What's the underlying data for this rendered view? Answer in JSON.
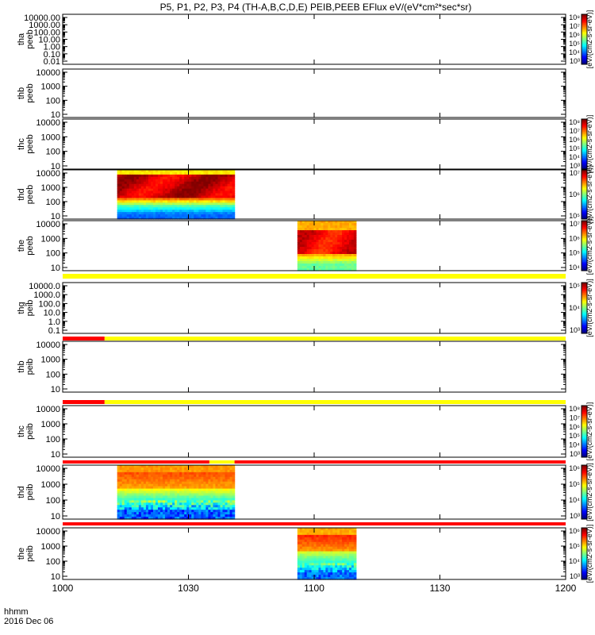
{
  "title": "P5, P1, P2, P3, P4 (TH-A,B,C,D,E) PEIB,PEEB EFlux eV/(eV*cm²*sec*sr)",
  "time_axis": {
    "label_line1": "hhmm",
    "label_line2": "2016 Dec 06",
    "ticks": [
      "1000",
      "1030",
      "1100",
      "1130",
      "1200"
    ]
  },
  "colorbar_unit_label": "[eV/(cm2-s-sr-eV)]",
  "colors": {
    "status_yellow": "#ffff00",
    "status_red": "#ff0000",
    "frame": "#000000"
  },
  "chart_data": {
    "type": "heatmap",
    "x_range": [
      "10:00",
      "12:00"
    ],
    "panels": [
      {
        "name": "tha peeb",
        "label1": "tha",
        "label2": "peeb",
        "yticks": [
          "10000.00",
          "1000.00",
          "100.00",
          "10.00",
          "1.00",
          "0.10",
          "0.01"
        ],
        "colorbar": true,
        "cb_ticks": [
          "10⁸",
          "10⁷",
          "10⁶",
          "10⁵",
          "10⁴",
          "10³"
        ],
        "data_spans": []
      },
      {
        "name": "thb peeb",
        "label1": "thb",
        "label2": "peeb",
        "yticks": [
          "10000",
          "1000",
          "100",
          "10"
        ],
        "colorbar": false,
        "data_spans": []
      },
      {
        "name": "thc peeb",
        "label1": "thc",
        "label2": "peeb",
        "yticks": [
          "10000",
          "1000",
          "100",
          "10"
        ],
        "colorbar": true,
        "cb_ticks": [
          "10⁸",
          "10⁷",
          "10⁶",
          "10⁵",
          "10⁴",
          "10³"
        ],
        "data_spans": []
      },
      {
        "name": "thd peeb",
        "label1": "thd",
        "label2": "peeb",
        "yticks": [
          "10000",
          "1000",
          "100",
          "10"
        ],
        "colorbar": true,
        "cb_ticks": [
          "10⁷",
          "10⁶",
          "10⁵"
        ],
        "data_spans": [
          {
            "start": "10:13",
            "end": "10:41",
            "profile": "thd_peeb"
          }
        ]
      },
      {
        "name": "the peeb",
        "label1": "the",
        "label2": "peeb",
        "yticks": [
          "10000",
          "1000",
          "100",
          "10"
        ],
        "colorbar": true,
        "cb_ticks": [
          "10⁷",
          "10⁶",
          "10⁵",
          "10⁴"
        ],
        "data_spans": [
          {
            "start": "10:56",
            "end": "11:10",
            "profile": "the_peeb"
          }
        ]
      },
      {
        "name": "thg peib",
        "label1": "thg",
        "label2": "peib",
        "yticks": [
          "10000.0",
          "1000.0",
          "100.0",
          "10.0",
          "1.0",
          "0.1"
        ],
        "colorbar": true,
        "cb_ticks": [
          "10⁵",
          "10⁴",
          "10³"
        ],
        "data_spans": []
      },
      {
        "name": "thb peib",
        "label1": "thb",
        "label2": "peib",
        "yticks": [
          "10000",
          "1000",
          "100",
          "10"
        ],
        "colorbar": false,
        "data_spans": []
      },
      {
        "name": "thc peib",
        "label1": "thc",
        "label2": "peib",
        "yticks": [
          "10000",
          "1000",
          "100",
          "10"
        ],
        "colorbar": true,
        "cb_ticks": [
          "10⁸",
          "10⁷",
          "10⁶",
          "10⁵",
          "10⁴",
          "10³"
        ],
        "data_spans": []
      },
      {
        "name": "thd peib",
        "label1": "thd",
        "label2": "peib",
        "yticks": [
          "10000",
          "1000",
          "100",
          "10"
        ],
        "colorbar": true,
        "cb_ticks": [
          "10⁶",
          "10⁵",
          "10⁴",
          "10³"
        ],
        "data_spans": [
          {
            "start": "10:13",
            "end": "10:41",
            "profile": "thd_peib"
          }
        ]
      },
      {
        "name": "the peib",
        "label1": "the",
        "label2": "peib",
        "yticks": [
          "10000",
          "1000",
          "100",
          "10"
        ],
        "colorbar": true,
        "cb_ticks": [
          "10⁶",
          "10⁵",
          "10⁴",
          "10³"
        ],
        "data_spans": [
          {
            "start": "10:56",
            "end": "11:10",
            "profile": "the_peib"
          }
        ]
      }
    ],
    "status_bars": [
      {
        "after_panel": 4,
        "segments": [
          {
            "start": "10:00",
            "end": "12:00",
            "color": "yellow"
          }
        ]
      },
      {
        "after_panel": 5,
        "segments": [
          {
            "start": "10:00",
            "end": "10:10",
            "color": "red"
          },
          {
            "start": "10:10",
            "end": "12:00",
            "color": "yellow"
          }
        ]
      },
      {
        "after_panel": 6,
        "segments": [
          {
            "start": "10:00",
            "end": "10:10",
            "color": "red"
          },
          {
            "start": "10:10",
            "end": "12:00",
            "color": "yellow"
          }
        ]
      },
      {
        "after_panel": 7,
        "segments": [
          {
            "start": "10:00",
            "end": "10:35",
            "color": "red"
          },
          {
            "start": "10:35",
            "end": "10:41",
            "color": "yellow"
          },
          {
            "start": "10:41",
            "end": "12:00",
            "color": "red"
          }
        ]
      },
      {
        "after_panel": 8,
        "segments": [
          {
            "start": "10:00",
            "end": "12:00",
            "color": "red"
          }
        ]
      }
    ]
  }
}
